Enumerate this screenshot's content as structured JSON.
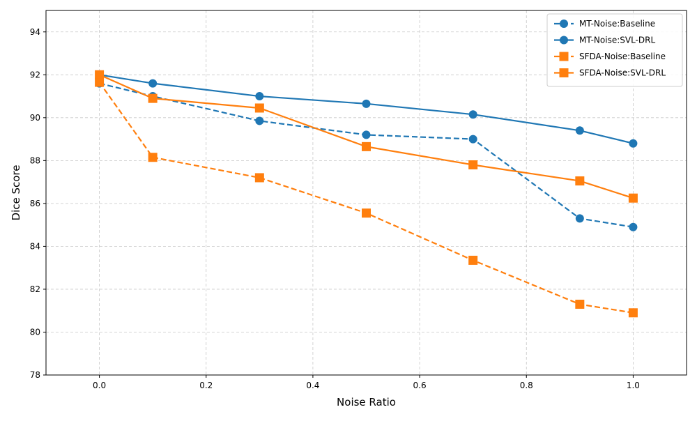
{
  "chart_data": {
    "type": "line",
    "title": "",
    "xlabel": "Noise Ratio",
    "ylabel": "Dice Score",
    "xlim": [
      -0.1,
      1.1
    ],
    "ylim": [
      78,
      95
    ],
    "xticks": [
      0.0,
      0.2,
      0.4,
      0.6,
      0.8,
      1.0
    ],
    "xtick_labels": [
      "0.0",
      "0.2",
      "0.4",
      "0.6",
      "0.8",
      "1.0"
    ],
    "yticks": [
      78,
      80,
      82,
      84,
      86,
      88,
      90,
      92,
      94
    ],
    "ytick_labels": [
      "78",
      "80",
      "82",
      "84",
      "86",
      "88",
      "90",
      "92",
      "94"
    ],
    "grid": true,
    "legend_position": "top-right",
    "x": [
      0.0,
      0.1,
      0.3,
      0.5,
      0.7,
      0.9,
      1.0
    ],
    "series": [
      {
        "name": "MT-Noise:Baseline",
        "color": "#1f77b4",
        "linestyle": "dashed",
        "marker": "circle",
        "values": [
          91.6,
          91.0,
          89.85,
          89.2,
          89.0,
          85.3,
          84.9
        ]
      },
      {
        "name": "MT-Noise:SVL-DRL",
        "color": "#1f77b4",
        "linestyle": "solid",
        "marker": "circle",
        "values": [
          92.0,
          91.6,
          91.0,
          90.65,
          90.15,
          89.4,
          88.8
        ]
      },
      {
        "name": "SFDA-Noise:Baseline",
        "color": "#ff7f0e",
        "linestyle": "dashed",
        "marker": "square",
        "values": [
          91.65,
          88.15,
          87.2,
          85.55,
          83.35,
          81.3,
          80.9
        ]
      },
      {
        "name": "SFDA-Noise:SVL-DRL",
        "color": "#ff7f0e",
        "linestyle": "solid",
        "marker": "square",
        "values": [
          92.0,
          90.9,
          90.45,
          88.65,
          87.8,
          87.05,
          86.25
        ]
      }
    ]
  }
}
